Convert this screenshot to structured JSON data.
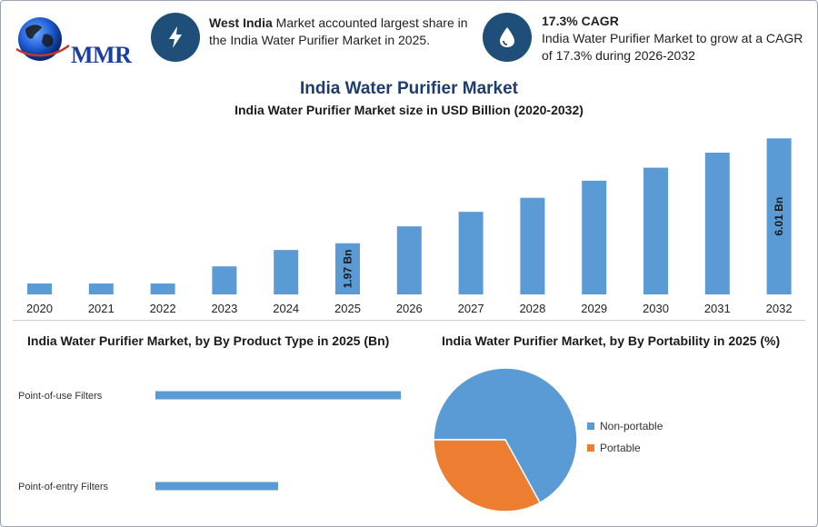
{
  "header": {
    "logo_text": "MMR",
    "info1": {
      "bold": "West India",
      "text": " Market accounted largest share in the India Water Purifier Market in 2025.",
      "icon": "lightning-icon"
    },
    "info2": {
      "bold": "17.3% CAGR",
      "text": "India Water Purifier Market to grow at a CAGR of 17.3% during 2026-2032",
      "icon": "water-drop-icon"
    }
  },
  "titles": {
    "main": "India Water Purifier Market",
    "sub": "India Water Purifier Market size in USD Billion (2020-2032)",
    "product": "India Water Purifier Market, by By Product Type in 2025 (Bn)",
    "portability": "India Water Purifier Market, by By Portability in 2025 (%)"
  },
  "colors": {
    "bar": "#5b9bd5",
    "portable": "#ed7d31",
    "icon_bg": "#1f4e79",
    "title": "#1f3c6e"
  },
  "chart_data": [
    {
      "type": "bar",
      "title": "India Water Purifier Market size in USD Billion (2020-2032)",
      "categories": [
        "2020",
        "2021",
        "2022",
        "2023",
        "2024",
        "2025",
        "2026",
        "2027",
        "2028",
        "2029",
        "2030",
        "2031",
        "2032"
      ],
      "values": [
        0.42,
        0.42,
        0.42,
        1.08,
        1.71,
        1.97,
        2.62,
        3.18,
        3.72,
        4.38,
        4.88,
        5.46,
        6.01
      ],
      "data_labels": {
        "5": "1.97 Bn",
        "12": "6.01 Bn"
      },
      "ylim": [
        0,
        6.3
      ]
    },
    {
      "type": "bar",
      "orientation": "horizontal",
      "title": "India Water Purifier Market, by By Product Type in 2025 (Bn)",
      "categories": [
        "Point-of-use Filters",
        "Point-of-entry Filters"
      ],
      "values": [
        1.32,
        0.66
      ],
      "xlim": [
        0,
        1.32
      ]
    },
    {
      "type": "pie",
      "title": "India Water Purifier Market, by By Portability in 2025 (%)",
      "labels": [
        "Non-portable",
        "Portable"
      ],
      "values": [
        67,
        33
      ],
      "legend": "right"
    }
  ]
}
